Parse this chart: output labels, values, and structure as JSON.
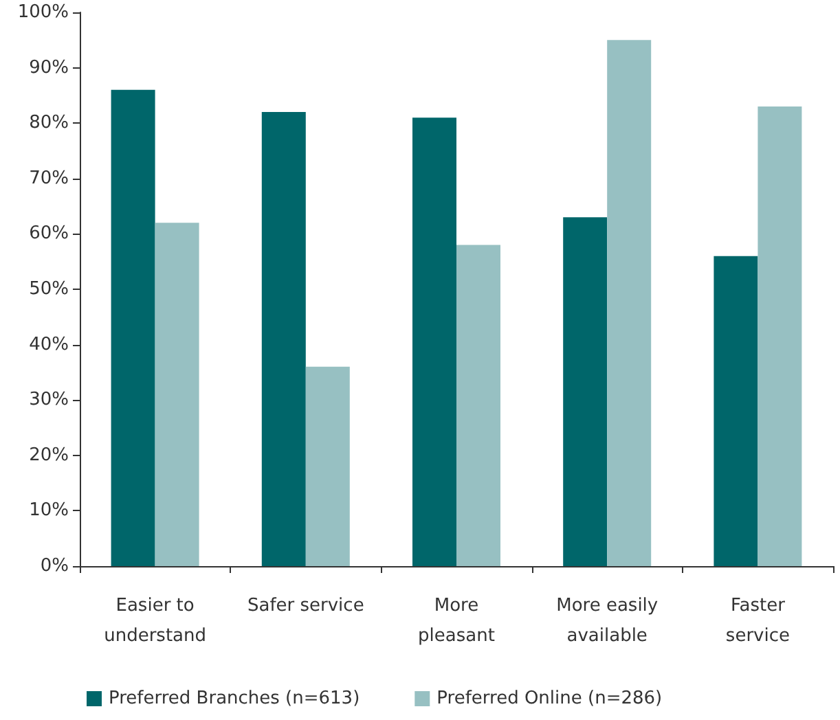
{
  "chart_data": {
    "type": "bar",
    "categories": [
      "Easier to\nunderstand",
      "Safer service",
      "More\npleasant",
      "More easily\navailable",
      "Faster\nservice"
    ],
    "series": [
      {
        "name": "Preferred Branches (n=613)",
        "color": "#00666a",
        "values": [
          86,
          82,
          81,
          63,
          56
        ]
      },
      {
        "name": "Preferred Online (n=286)",
        "color": "#97c0c2",
        "values": [
          62,
          36,
          58,
          95,
          83
        ]
      }
    ],
    "ylim": [
      0,
      100
    ],
    "yticks": [
      {
        "value": 0,
        "label": "0%"
      },
      {
        "value": 10,
        "label": "10%"
      },
      {
        "value": 20,
        "label": "20%"
      },
      {
        "value": 30,
        "label": "30%"
      },
      {
        "value": 40,
        "label": "40%"
      },
      {
        "value": 50,
        "label": "50%"
      },
      {
        "value": 60,
        "label": "60%"
      },
      {
        "value": 70,
        "label": "70%"
      },
      {
        "value": 80,
        "label": "80%"
      },
      {
        "value": 90,
        "label": "90%"
      },
      {
        "value": 100,
        "label": "100%"
      }
    ],
    "grid": false,
    "legend": "bottom left"
  }
}
